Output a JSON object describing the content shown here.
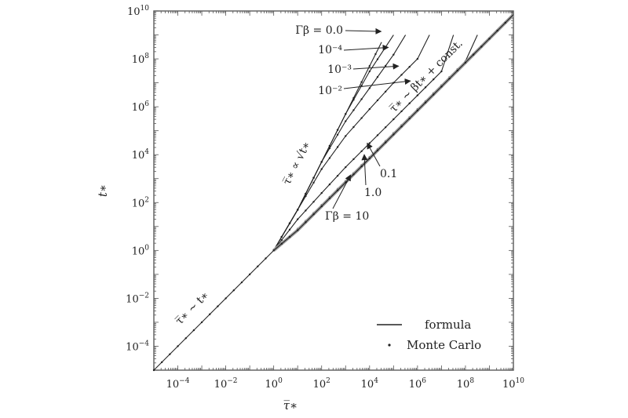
{
  "chart_data": {
    "type": "line",
    "xlabel": "τ̅∗",
    "ylabel": "t∗",
    "xscale": "log",
    "yscale": "log",
    "xlim": [
      1e-05,
      10000000000.0
    ],
    "ylim": [
      1e-05,
      10000000000.0
    ],
    "x_ticks": [
      {
        "value": 0.0001,
        "base": "10",
        "exp": "−4"
      },
      {
        "value": 0.01,
        "base": "10",
        "exp": "−2"
      },
      {
        "value": 1,
        "base": "10",
        "exp": "0"
      },
      {
        "value": 100.0,
        "base": "10",
        "exp": "2"
      },
      {
        "value": 10000.0,
        "base": "10",
        "exp": "4"
      },
      {
        "value": 1000000.0,
        "base": "10",
        "exp": "6"
      },
      {
        "value": 100000000.0,
        "base": "10",
        "exp": "8"
      },
      {
        "value": 10000000000.0,
        "base": "10",
        "exp": "10"
      }
    ],
    "y_ticks": [
      {
        "value": 0.0001,
        "base": "10",
        "exp": "−4"
      },
      {
        "value": 0.01,
        "base": "10",
        "exp": "−2"
      },
      {
        "value": 1,
        "base": "10",
        "exp": "0"
      },
      {
        "value": 100.0,
        "base": "10",
        "exp": "2"
      },
      {
        "value": 10000.0,
        "base": "10",
        "exp": "4"
      },
      {
        "value": 1000000.0,
        "base": "10",
        "exp": "6"
      },
      {
        "value": 100000000.0,
        "base": "10",
        "exp": "8"
      },
      {
        "value": 10000000000.0,
        "base": "10",
        "exp": "10"
      }
    ],
    "common": {
      "x": [
        1e-05,
        1
      ],
      "y": [
        1e-05,
        1
      ]
    },
    "series": [
      {
        "label": "Γβ = 0.0",
        "x": [
          1,
          10,
          100,
          1000,
          10000,
          31623
        ],
        "y": [
          1,
          50,
          5000,
          500000.0,
          50000000.0,
          500000000.0
        ]
      },
      {
        "label": "10⁻⁴",
        "x": [
          1,
          10,
          100,
          1000,
          10000,
          100000.0
        ],
        "y": [
          1,
          50,
          5000,
          500000.0,
          30000000.0,
          1000000000.0
        ]
      },
      {
        "label": "10⁻³",
        "x": [
          1,
          10,
          100,
          1000,
          10000,
          100000.0,
          316000.0
        ],
        "y": [
          1,
          50,
          5000,
          250000.0,
          6000000.0,
          150000000.0,
          1000000000.0
        ]
      },
      {
        "label": "10⁻²",
        "x": [
          1,
          10,
          100,
          1000,
          10000,
          100000.0,
          1000000.0,
          3160000.0
        ],
        "y": [
          1,
          50,
          2500,
          60000.0,
          800000.0,
          10000000.0,
          100000000.0,
          1000000000.0
        ]
      },
      {
        "label": "0.1",
        "x": [
          1,
          10,
          100,
          1000,
          10000.0,
          100000.0,
          1000000.0,
          10000000.0,
          31600000.0
        ],
        "y": [
          1,
          20,
          250,
          3000,
          30000.0,
          300000.0,
          3000000.0,
          30000000.0,
          1000000000.0
        ]
      },
      {
        "label": "1.0",
        "x": [
          1,
          10,
          100,
          1000,
          10000.0,
          100000.0,
          1000000.0,
          10000000.0,
          100000000.0,
          316000000.0
        ],
        "y": [
          1,
          8,
          80,
          800,
          8000,
          80000.0,
          800000.0,
          8000000.0,
          80000000.0,
          1000000000.0
        ]
      },
      {
        "label": "Γβ = 10",
        "x": [
          1,
          10,
          100,
          1000,
          10000.0,
          100000.0,
          1000000.0,
          10000000.0,
          100000000.0,
          1000000000.0,
          10000000000.0
        ],
        "y": [
          1,
          7,
          70,
          700,
          7000,
          70000.0,
          700000.0,
          7000000.0,
          70000000.0,
          700000000.0,
          7000000000.0
        ]
      }
    ],
    "annotations": [
      {
        "key": "lbl_gb00",
        "text": "Γβ = 0.0",
        "arrow_to": [
          30000.0,
          1400000000.0
        ]
      },
      {
        "key": "lbl_1e4",
        "text": "10⁻⁴",
        "arrow_to": [
          60000.0,
          300000000.0
        ]
      },
      {
        "key": "lbl_1e3",
        "text": "10⁻³",
        "arrow_to": [
          160000.0,
          50000000.0
        ]
      },
      {
        "key": "lbl_1e2",
        "text": "10⁻²",
        "arrow_to": [
          500000.0,
          12000000.0
        ]
      },
      {
        "key": "lbl_01",
        "text": "0.1",
        "arrow_to": [
          8000.0,
          30000.0
        ]
      },
      {
        "key": "lbl_10",
        "text": "1.0",
        "arrow_to": [
          6000.0,
          10000.0
        ]
      },
      {
        "key": "lbl_gb10",
        "text": "Γβ = 10",
        "arrow_to": [
          1600.0,
          1400.0
        ]
      },
      {
        "key": "reg_lin",
        "text": "τ̅∗ ∼ t∗"
      },
      {
        "key": "reg_sqrt",
        "text": "τ̅∗ ∝ √t∗"
      },
      {
        "key": "reg_const",
        "text": "τ̅∗ ∼ βt∗ + const."
      }
    ],
    "legend": {
      "placement": "bottom-right",
      "entries": [
        {
          "label": "formula",
          "marker": "line"
        },
        {
          "label": "Monte Carlo",
          "marker": "dot"
        }
      ]
    },
    "grid": false
  }
}
